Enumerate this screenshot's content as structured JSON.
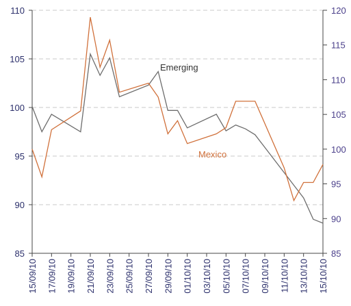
{
  "chart_data": {
    "type": "line",
    "x": [
      "15/09/10",
      "16/09/10",
      "17/09/10",
      "20/09/10",
      "21/09/10",
      "22/09/10",
      "23/09/10",
      "24/09/10",
      "27/09/10",
      "28/09/10",
      "29/09/10",
      "30/09/10",
      "01/10/10",
      "04/10/10",
      "05/10/10",
      "06/10/10",
      "07/10/10",
      "08/10/10",
      "11/10/10",
      "12/10/10",
      "13/10/10",
      "14/10/10",
      "15/10/10"
    ],
    "xticks": [
      "15/09/10",
      "17/09/10",
      "19/09/10",
      "21/09/10",
      "23/09/10",
      "25/09/10",
      "27/09/10",
      "29/09/10",
      "01/10/10",
      "03/10/10",
      "05/10/10",
      "07/10/10",
      "09/10/10",
      "11/10/10",
      "13/10/10",
      "15/10/10"
    ],
    "series": [
      {
        "name": "Emerging",
        "color": "#6d6d6d",
        "axis": "y",
        "values": [
          100.1,
          97.5,
          99.3,
          97.5,
          105.5,
          103.3,
          105.1,
          101.1,
          102.3,
          103.7,
          99.7,
          99.7,
          97.9,
          99.3,
          97.6,
          98.2,
          97.8,
          97.2,
          93.3,
          92.0,
          90.7,
          88.5,
          88.1
        ]
      },
      {
        "name": "Mexico",
        "color": "#d0703a",
        "axis": "y2",
        "values": [
          100.0,
          96.0,
          102.8,
          105.5,
          119.0,
          111.8,
          115.7,
          108.2,
          109.5,
          107.5,
          102.2,
          104.1,
          100.8,
          102.2,
          103.1,
          106.9,
          106.9,
          106.9,
          97.3,
          92.6,
          95.2,
          95.2,
          97.8
        ]
      }
    ],
    "ylim": [
      85,
      110
    ],
    "yticks": [
      85,
      90,
      95,
      100,
      105,
      110
    ],
    "y2lim": [
      85,
      120
    ],
    "y2ticks": [
      85,
      90,
      95,
      100,
      105,
      110,
      115,
      120
    ],
    "grid": true
  }
}
